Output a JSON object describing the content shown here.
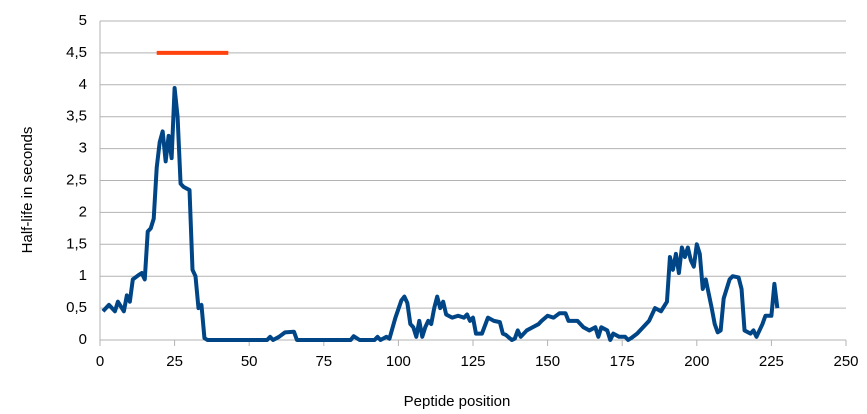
{
  "chart_data": {
    "type": "line",
    "x_label": "Peptide position",
    "y_label": "Half-life in seconds",
    "xlim": [
      0,
      250
    ],
    "xticks": [
      0,
      25,
      50,
      75,
      100,
      125,
      150,
      175,
      200,
      225,
      250
    ],
    "ylim": [
      0,
      5
    ],
    "yticks": [
      0,
      {
        "value": 0.5,
        "label": "0,5"
      },
      1,
      {
        "value": 1.5,
        "label": "1,5"
      },
      2,
      {
        "value": 2.5,
        "label": "2,5"
      },
      3,
      {
        "value": 3.5,
        "label": "3,5"
      },
      4,
      {
        "value": 4.5,
        "label": "4,5"
      },
      5
    ],
    "grid": true,
    "series": [
      {
        "color": "#004586",
        "x": [
          1,
          3,
          5,
          6,
          8,
          9,
          10,
          11,
          13,
          14,
          15,
          16,
          17,
          18,
          19,
          20,
          21,
          22,
          23,
          24,
          25,
          26,
          27,
          28,
          30,
          31,
          32,
          33,
          34,
          35,
          36,
          56,
          57,
          58,
          60,
          62,
          65,
          66,
          84,
          85,
          87,
          92,
          93,
          94,
          96,
          97,
          99,
          101,
          102,
          103,
          104,
          105,
          106,
          107,
          108,
          109,
          110,
          111,
          112,
          113,
          114,
          115,
          116,
          118,
          120,
          122,
          123,
          124,
          125,
          126,
          128,
          130,
          132,
          134,
          135,
          136,
          138,
          139,
          140,
          141,
          143,
          145,
          147,
          148,
          150,
          152,
          154,
          156,
          157,
          160,
          162,
          164,
          166,
          167,
          168,
          170,
          171,
          172,
          174,
          176,
          177,
          178,
          180,
          182,
          184,
          186,
          188,
          190,
          191,
          192,
          193,
          194,
          195,
          196,
          197,
          198,
          199,
          200,
          201,
          202,
          203,
          205,
          206,
          207,
          208,
          209,
          211,
          212,
          214,
          215,
          216,
          218,
          219,
          220,
          222,
          223,
          225,
          226,
          227
        ],
        "values": [
          0.45,
          0.55,
          0.45,
          0.6,
          0.45,
          0.7,
          0.6,
          0.95,
          1.02,
          1.05,
          0.95,
          1.7,
          1.75,
          1.9,
          2.7,
          3.1,
          3.27,
          2.8,
          3.2,
          2.85,
          3.95,
          3.5,
          2.45,
          2.4,
          2.35,
          1.1,
          1.0,
          0.5,
          0.55,
          0.03,
          0,
          0,
          0.05,
          0,
          0.05,
          0.12,
          0.13,
          0,
          0,
          0.06,
          0,
          0,
          0.05,
          0,
          0.05,
          0.02,
          0.35,
          0.62,
          0.68,
          0.58,
          0.25,
          0.2,
          0.05,
          0.3,
          0.05,
          0.2,
          0.3,
          0.25,
          0.5,
          0.68,
          0.5,
          0.6,
          0.4,
          0.35,
          0.38,
          0.35,
          0.4,
          0.3,
          0.35,
          0.1,
          0.1,
          0.35,
          0.3,
          0.28,
          0.1,
          0.08,
          0,
          0.02,
          0.15,
          0.05,
          0.15,
          0.2,
          0.25,
          0.3,
          0.38,
          0.35,
          0.42,
          0.42,
          0.3,
          0.3,
          0.2,
          0.15,
          0.2,
          0.05,
          0.2,
          0.15,
          0,
          0.1,
          0.05,
          0.05,
          0,
          0.03,
          0.1,
          0.2,
          0.3,
          0.5,
          0.45,
          0.6,
          1.3,
          1.1,
          1.35,
          1.05,
          1.45,
          1.3,
          1.45,
          1.25,
          1.15,
          1.5,
          1.35,
          0.8,
          0.95,
          0.5,
          0.25,
          0.12,
          0.15,
          0.65,
          0.95,
          1.0,
          0.98,
          0.8,
          0.15,
          0.1,
          0.15,
          0.05,
          0.25,
          0.38,
          0.38,
          0.88,
          0.5
        ]
      },
      {
        "color": "#ff420e",
        "x": [
          19,
          43
        ],
        "values": [
          4.5,
          4.5
        ]
      }
    ]
  }
}
